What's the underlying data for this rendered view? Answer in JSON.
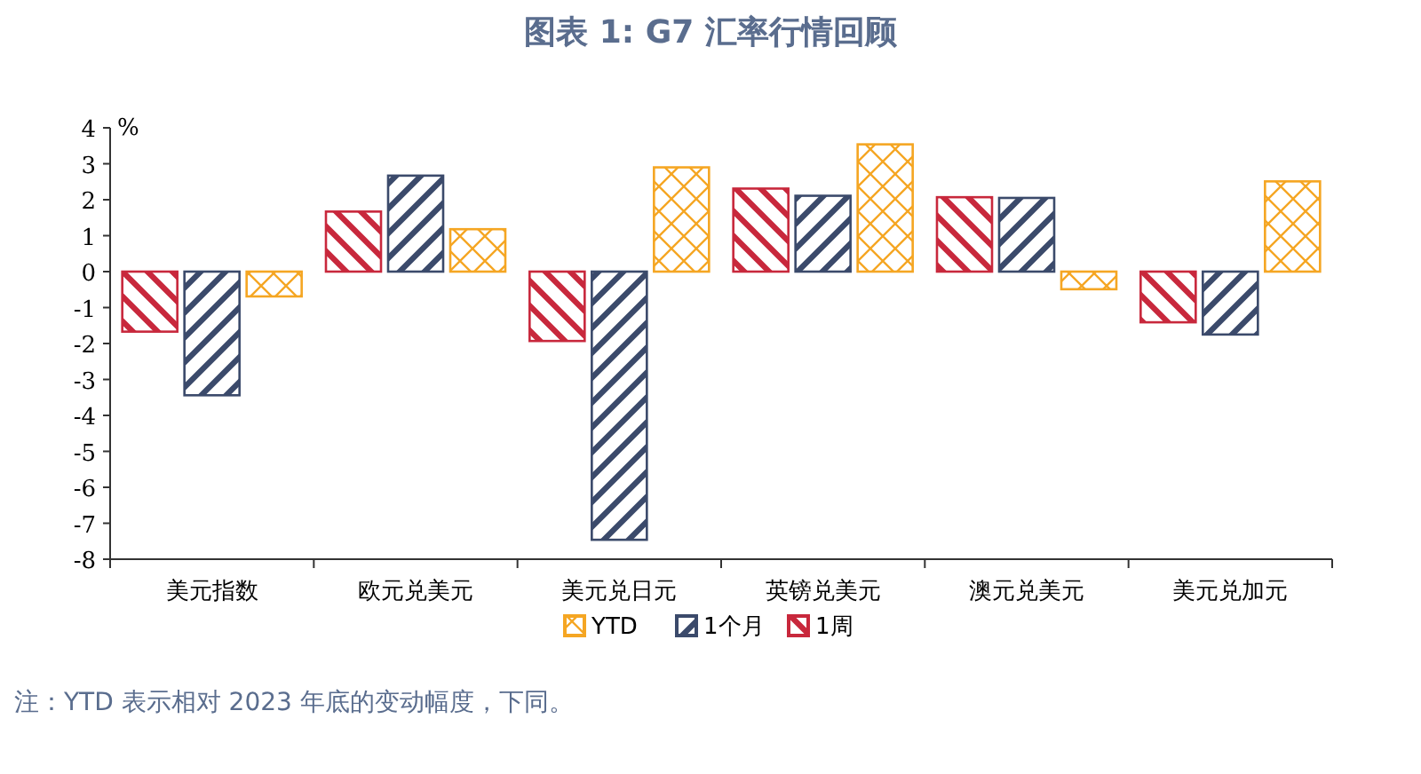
{
  "chart_data": {
    "type": "bar",
    "title": "图表 1: G7 汇率行情回顾",
    "ylabel": "%",
    "categories": [
      "美元指数",
      "欧元兑美元",
      "美元兑日元",
      "英镑兑美元",
      "澳元兑美元",
      "美元兑加元"
    ],
    "series": [
      {
        "name": "1周",
        "color": "#c8283c",
        "values": [
          -1.67,
          1.67,
          -1.93,
          2.31,
          2.07,
          -1.41
        ]
      },
      {
        "name": "1个月",
        "color": "#3b4a6b",
        "values": [
          -3.44,
          2.67,
          -7.46,
          2.11,
          2.05,
          -1.75
        ]
      },
      {
        "name": "YTD",
        "color": "#f5a623",
        "values": [
          -0.69,
          1.18,
          2.9,
          3.54,
          -0.49,
          2.51
        ]
      }
    ],
    "ylim": [
      -8,
      4
    ],
    "yticks": [
      -8,
      -7,
      -6,
      -5,
      -4,
      -3,
      -2,
      -1,
      0,
      1,
      2,
      3,
      4
    ],
    "legend": "bottom",
    "grid": false,
    "annotations": [
      "注：YTD 表示相对 2023 年底的变动幅度，下同。"
    ]
  }
}
